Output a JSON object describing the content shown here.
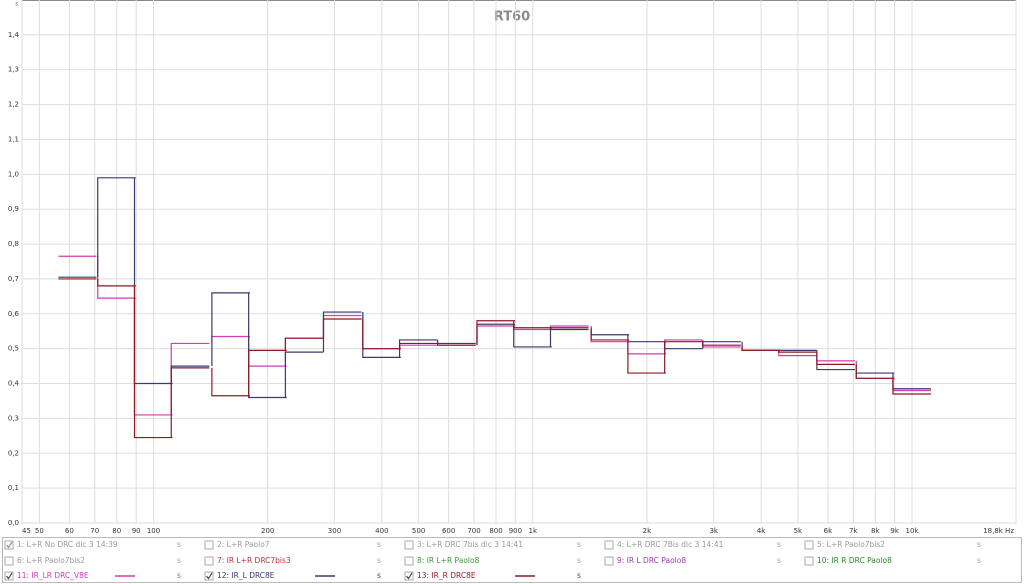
{
  "chart_data": {
    "type": "step",
    "title": "RT60",
    "ylabel": "s",
    "log_x": true,
    "grid": true,
    "xlim": [
      45,
      18800
    ],
    "ylim": [
      0,
      1.5
    ],
    "xticks": [
      45,
      50,
      60,
      70,
      80,
      90,
      100,
      200,
      300,
      400,
      500,
      600,
      700,
      800,
      900,
      {
        "value": 1000,
        "label": "1k"
      },
      {
        "value": 2000,
        "label": "2k"
      },
      {
        "value": 3000,
        "label": "3k"
      },
      {
        "value": 4000,
        "label": "4k"
      },
      {
        "value": 5000,
        "label": "5k"
      },
      {
        "value": 6000,
        "label": "6k"
      },
      {
        "value": 7000,
        "label": "7k"
      },
      {
        "value": 8000,
        "label": "8k"
      },
      {
        "value": 9000,
        "label": "9k"
      },
      {
        "value": 10000,
        "label": "10k"
      },
      {
        "value": 18800,
        "label": "18,8k Hz"
      }
    ],
    "yticks": [
      {
        "value": 0,
        "label": "0,0"
      },
      {
        "value": 0.1,
        "label": "0,1"
      },
      {
        "value": 0.2,
        "label": "0,2"
      },
      {
        "value": 0.3,
        "label": "0,3"
      },
      {
        "value": 0.4,
        "label": "0,4"
      },
      {
        "value": 0.5,
        "label": "0,5"
      },
      {
        "value": 0.6,
        "label": "0,6"
      },
      {
        "value": 0.7,
        "label": "0,7"
      },
      {
        "value": 0.8,
        "label": "0,8"
      },
      {
        "value": 0.9,
        "label": "0,9"
      },
      {
        "value": 1.0,
        "label": "1,0"
      },
      {
        "value": 1.1,
        "label": "1,1"
      },
      {
        "value": 1.2,
        "label": "1,2"
      },
      {
        "value": 1.3,
        "label": "1,3"
      },
      {
        "value": 1.4,
        "label": "1,4"
      }
    ],
    "x": [
      63,
      80,
      100,
      125,
      160,
      200,
      250,
      315,
      400,
      500,
      630,
      800,
      1000,
      1250,
      1600,
      2000,
      2500,
      3150,
      4000,
      5000,
      6300,
      8000,
      10000
    ],
    "series": [
      {
        "name": "11: IR_LR DRC_V8E",
        "unit": "s",
        "checked": true,
        "color": "#d63ab4",
        "values": [
          0.765,
          0.645,
          0.31,
          0.515,
          0.535,
          0.45,
          0.53,
          0.595,
          0.5,
          0.51,
          0.51,
          0.565,
          0.555,
          0.565,
          0.52,
          0.485,
          0.525,
          0.505,
          0.495,
          0.48,
          0.465,
          0.415,
          0.38
        ]
      },
      {
        "name": "12: IR_L DRC8E",
        "unit": "s",
        "checked": true,
        "color": "#3a3a72",
        "values": [
          0.705,
          0.99,
          0.4,
          0.45,
          0.66,
          0.36,
          0.49,
          0.605,
          0.475,
          0.525,
          0.515,
          0.57,
          0.505,
          0.56,
          0.54,
          0.52,
          0.5,
          0.52,
          0.495,
          0.495,
          0.44,
          0.43,
          0.385
        ]
      },
      {
        "name": "13: IR_R DRC8E",
        "unit": "s",
        "checked": true,
        "color": "#8e1a1e",
        "values": [
          0.7,
          0.68,
          0.245,
          0.445,
          0.365,
          0.495,
          0.53,
          0.585,
          0.5,
          0.515,
          0.51,
          0.58,
          0.56,
          0.555,
          0.525,
          0.43,
          0.52,
          0.51,
          0.495,
          0.49,
          0.455,
          0.415,
          0.37
        ]
      }
    ],
    "inactive_traces": [
      {
        "label": "1: L+R No DRC dic 3 14:39",
        "unit": "s",
        "checked": true,
        "color": "#9a9a9a"
      },
      {
        "label": "2: L+R Paolo7",
        "unit": "s",
        "checked": false,
        "color": "#9a9a9a"
      },
      {
        "label": "3: L+R DRC 7bis dic 3 14:41",
        "unit": "s",
        "checked": false,
        "color": "#9a9a9a"
      },
      {
        "label": "4: L+R DRC 7Bis dic 3 14:41",
        "unit": "s",
        "checked": false,
        "color": "#9a9a9a"
      },
      {
        "label": "5: L+R Paolo7bis2",
        "unit": "s",
        "checked": false,
        "color": "#9a9a9a"
      },
      {
        "label": "6: L+R Paolo7bis2",
        "unit": "s",
        "checked": false,
        "color": "#9a9a9a"
      },
      {
        "label": "7: IR L+R DRC7bis3",
        "unit": "s",
        "checked": false,
        "color": "#c03030"
      },
      {
        "label": "8: IR L+R Paolo8",
        "unit": "s",
        "checked": false,
        "color": "#3a9a3a"
      },
      {
        "label": "9: IR L DRC Paolo8",
        "unit": "s",
        "checked": false,
        "color": "#9a40b0"
      },
      {
        "label": "10: IR R DRC Paolo8",
        "unit": "s",
        "checked": false,
        "color": "#2a8a2a"
      }
    ]
  }
}
